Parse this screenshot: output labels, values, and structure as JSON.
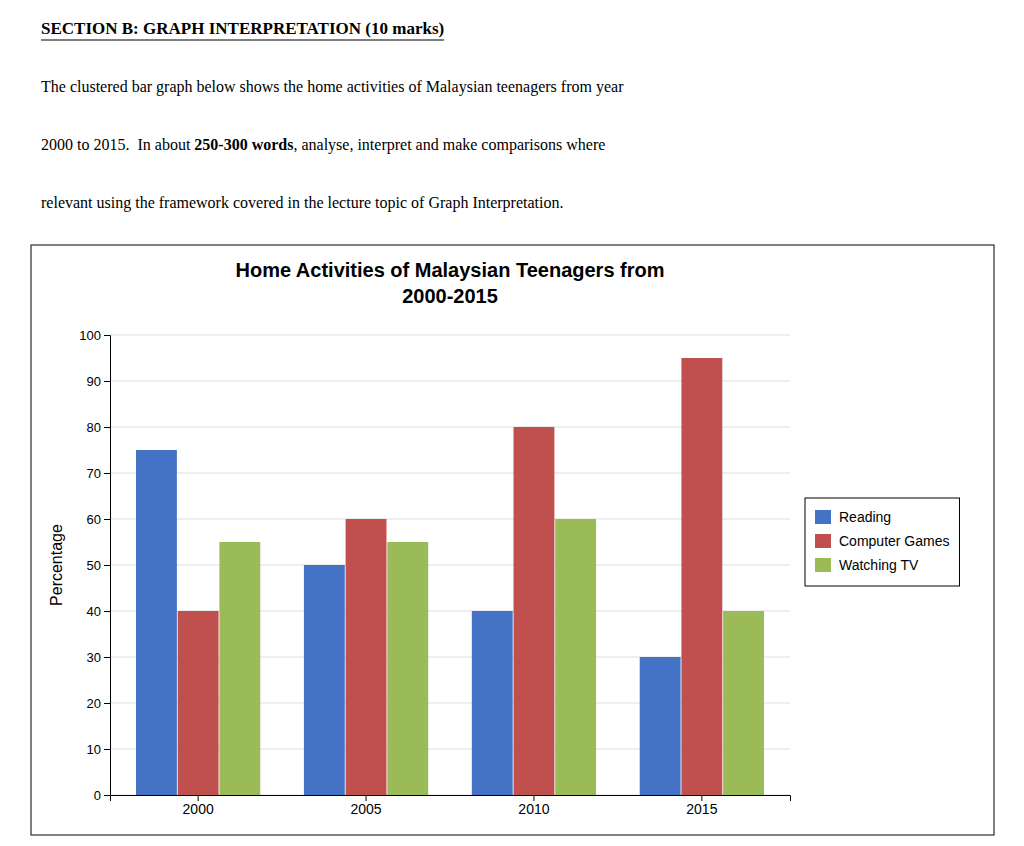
{
  "chart_data": {
    "type": "bar",
    "title": "Home Activities of Malaysian Teenagers from\n2000-2015",
    "annotations": [
      [
        "SECTION B: GRAPH INTERPRETATION (10 marks)"
      ],
      [
        "The clustered bar graph below shows the home activities of Malaysian teenagers from year"
      ],
      [
        "2000 to 2015.  In about ",
        "250-300 words",
        ", analyse, interpret and make comparisons where"
      ],
      [
        "relevant using the framework covered in the lecture topic of Graph Interpretation."
      ]
    ],
    "y_label": "Percentage",
    "categories": [
      "2000",
      "2005",
      "2010",
      "2015"
    ],
    "series": [
      {
        "name": "Reading",
        "color": "#4472C4",
        "values": [
          75,
          50,
          40,
          30
        ]
      },
      {
        "name": "Computer Games",
        "color": "#C0504D",
        "values": [
          40,
          60,
          80,
          95
        ]
      },
      {
        "name": "Watching TV",
        "color": "#9BBB59",
        "values": [
          55,
          55,
          60,
          40
        ]
      }
    ],
    "ylim": [
      0,
      100
    ],
    "yticks": [
      0,
      10,
      20,
      30,
      40,
      50,
      60,
      70,
      80,
      90,
      100
    ],
    "grid": true,
    "legend": "right"
  }
}
